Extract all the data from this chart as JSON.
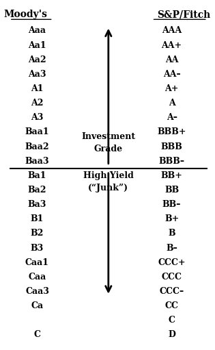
{
  "title_left": "Moody's",
  "title_right": "S&P/Fitch",
  "moodys_ratings": [
    "Aaa",
    "Aa1",
    "Aa2",
    "Aa3",
    "A1",
    "A2",
    "A3",
    "Baa1",
    "Baa2",
    "Baa3",
    "Ba1",
    "Ba2",
    "Ba3",
    "B1",
    "B2",
    "B3",
    "Caa1",
    "Caa",
    "Caa3",
    "Ca",
    "",
    "C"
  ],
  "sp_ratings": [
    "AAA",
    "AA+",
    "AA",
    "AA–",
    "A+",
    "A",
    "A–",
    "BBB+",
    "BBB",
    "BBB–",
    "BB+",
    "BB",
    "BB–",
    "B+",
    "B",
    "B–",
    "CCC+",
    "CCC",
    "CCC–",
    "CC",
    "C",
    "D"
  ],
  "investment_grade_label": [
    "Investment",
    "Grade"
  ],
  "high_yield_label": [
    "High Yield",
    "(“Junk”)"
  ],
  "separator_row": 10,
  "background_color": "#ffffff",
  "text_color": "#000000",
  "font_size": 9,
  "title_font_size": 10,
  "label_font_size": 9
}
